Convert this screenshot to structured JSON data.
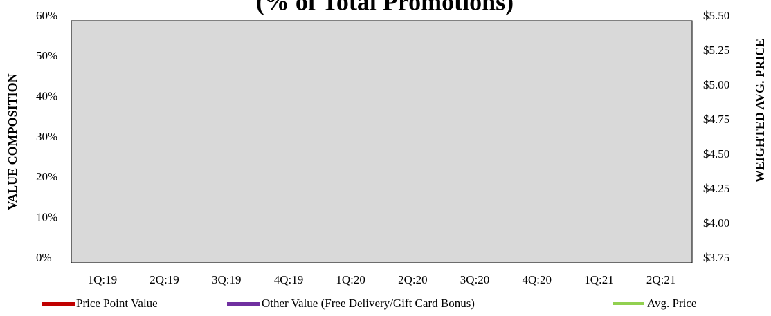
{
  "chart_data": {
    "type": "bar",
    "title": "(% of Total Promotions)",
    "ylabel": "VALUE COMPOSITION",
    "y2label": "WEIGHTED AVG. PRICE",
    "categories": [
      "1Q:19",
      "2Q:19",
      "3Q:19",
      "4Q:19",
      "1Q:20",
      "2Q:20",
      "3Q:20",
      "4Q:20",
      "1Q:21",
      "2Q:21"
    ],
    "series": [
      {
        "name": "Price Point Value",
        "color": "#c00000",
        "values": [
          null,
          null,
          null,
          null,
          null,
          null,
          null,
          null,
          null,
          null
        ]
      },
      {
        "name": "Other Value (Free Delivery/Gift Card Bonus)",
        "color": "#7030a0",
        "values": [
          null,
          null,
          null,
          null,
          null,
          null,
          null,
          null,
          null,
          null
        ]
      },
      {
        "name": "Avg. Price",
        "color": "#92d050",
        "axis": "y2",
        "values": [
          null,
          null,
          null,
          null,
          null,
          null,
          null,
          null,
          null,
          null
        ]
      }
    ],
    "ylim": [
      0,
      60
    ],
    "yticks": [
      {
        "value": 0,
        "label": "0%"
      },
      {
        "value": 10,
        "label": "10%"
      },
      {
        "value": 20,
        "label": "20%"
      },
      {
        "value": 30,
        "label": "30%"
      },
      {
        "value": 40,
        "label": "40%"
      },
      {
        "value": 50,
        "label": "50%"
      },
      {
        "value": 60,
        "label": "60%"
      }
    ],
    "y2lim": [
      3.75,
      5.5
    ],
    "y2ticks": [
      {
        "value": 3.75,
        "label": "$3.75"
      },
      {
        "value": 4,
        "label": "$4.00"
      },
      {
        "value": 4.25,
        "label": "$4.25"
      },
      {
        "value": 4.5,
        "label": "$4.50"
      },
      {
        "value": 4.75,
        "label": "$4.75"
      },
      {
        "value": 5,
        "label": "$5.00"
      },
      {
        "value": 5.25,
        "label": "$5.25"
      },
      {
        "value": 5.5,
        "label": "$5.50"
      }
    ],
    "plot_background": "#d9d9d9"
  }
}
